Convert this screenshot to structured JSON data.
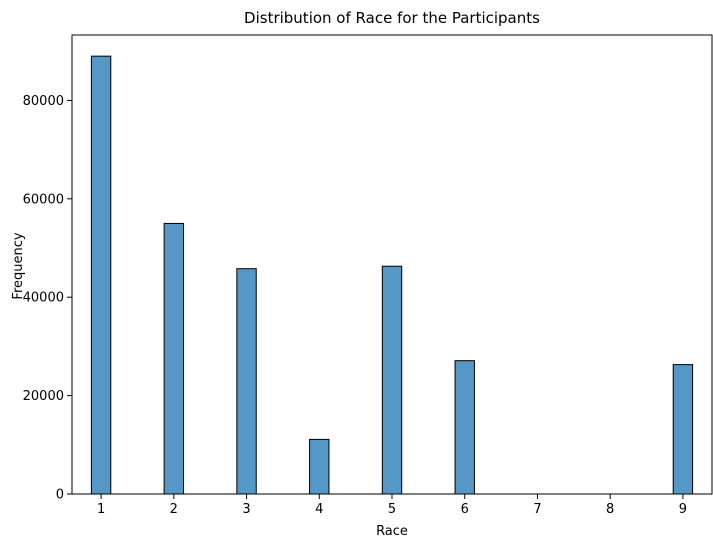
{
  "chart_data": {
    "type": "bar",
    "title": "Distribution of Race for the Participants",
    "xlabel": "Race",
    "ylabel": "Frequency",
    "x_ticks": [
      1,
      2,
      3,
      4,
      5,
      6,
      7,
      8,
      9
    ],
    "y_ticks": [
      0,
      20000,
      40000,
      60000,
      80000
    ],
    "xlim": [
      0.6,
      9.4
    ],
    "ylim": [
      0,
      93300
    ],
    "bin_width": 0.2667,
    "bars": [
      {
        "x": 1,
        "value": 89000
      },
      {
        "x": 2,
        "value": 55000
      },
      {
        "x": 3,
        "value": 45800
      },
      {
        "x": 4,
        "value": 11100
      },
      {
        "x": 5,
        "value": 46300
      },
      {
        "x": 6,
        "value": 27100
      },
      {
        "x": 9,
        "value": 26300
      }
    ],
    "bar_color": "#5597c7",
    "edge_color": "#000000",
    "grid": false,
    "legend": "none"
  }
}
